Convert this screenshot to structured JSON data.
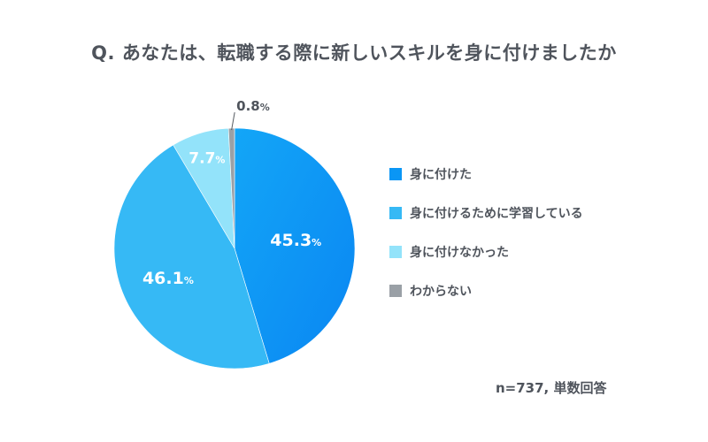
{
  "chart_data": {
    "type": "pie",
    "title": "Q. あなたは、転職する際に新しいスキルを身に付けましたか",
    "categories": [
      "身に付けた",
      "身に付けるために学習している",
      "身に付けなかった",
      "わからない"
    ],
    "values": [
      45.3,
      46.1,
      7.7,
      0.8
    ],
    "value_labels": [
      "45.3",
      "46.1",
      "7.7",
      "0.8"
    ],
    "unit": "%",
    "colors": [
      "#0a96f5",
      "#36b9f5",
      "#93e3fa",
      "#9aa0a6"
    ],
    "legend_position": "right",
    "note": "n=737, 単数回答"
  }
}
